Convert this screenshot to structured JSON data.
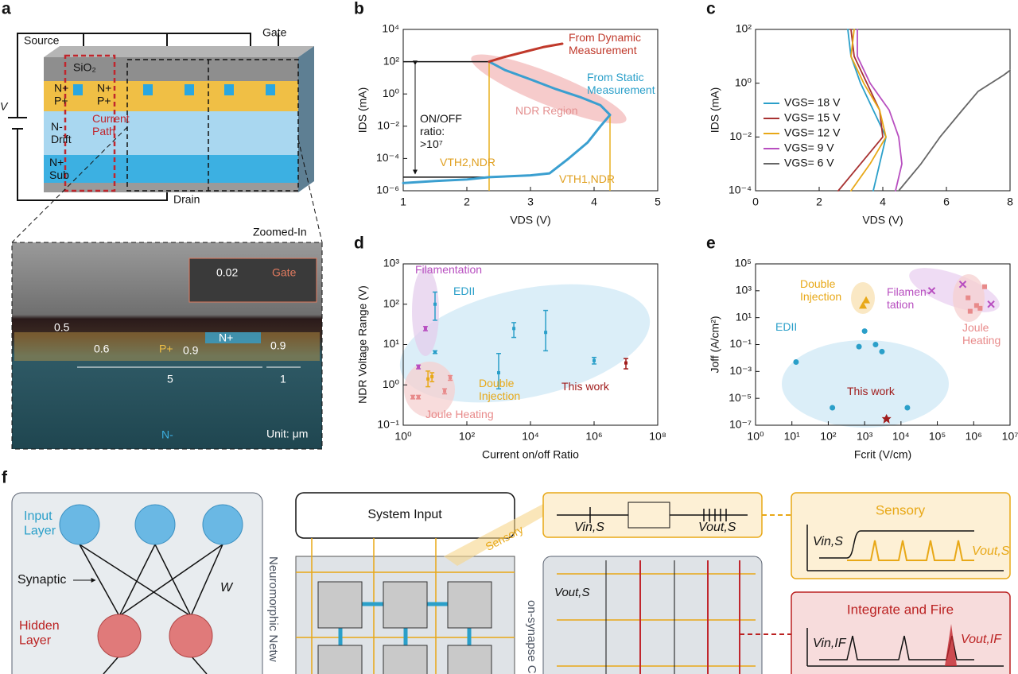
{
  "panel_a": {
    "label": "a",
    "source": "Source",
    "gate": "Gate",
    "sio2": "SiO₂",
    "n_plus_1": "N+",
    "p_plus_1": "P+",
    "n_plus_2": "N+",
    "p_plus_2": "P+",
    "current_path": "Current Path",
    "drift": "N- Drift",
    "sub": "N+ Sub",
    "drain": "Drain",
    "v": "V",
    "zoomed": "Zoomed-In",
    "dim_gate": "0.02",
    "gate2": "Gate",
    "dim_05": "0.5",
    "sem_p": "P+",
    "sem_n": "N+",
    "dim_06": "0.6",
    "dim_09a": "0.9",
    "dim_09b": "0.9",
    "dim_5": "5",
    "dim_1": "1",
    "sem_nminus": "N-",
    "unit": "Unit: μm"
  },
  "chart_data": [
    {
      "type": "line",
      "label": "b",
      "xlabel": "VDS (V)",
      "ylabel": "IDS (mA)",
      "xlim": [
        1,
        5
      ],
      "xticks": [
        1,
        2,
        3,
        4,
        5
      ],
      "ylim": [
        1e-06,
        10000
      ],
      "ylog": true,
      "yticks": [
        {
          "value": 1e-06,
          "label": "10⁻⁶"
        },
        {
          "value": 0.0001,
          "label": "10⁻⁴"
        },
        {
          "value": 0.01,
          "label": "10⁻²"
        },
        {
          "value": 1,
          "label": "10⁰"
        },
        {
          "value": 100,
          "label": "10²"
        },
        {
          "value": 10000,
          "label": "10⁴"
        }
      ],
      "series": [
        {
          "name": "From Static Measurement",
          "color": "#3a9fd0",
          "x": [
            1,
            1.5,
            2,
            2.35,
            3,
            3.3,
            3.6,
            3.9,
            4.1,
            4.25,
            4.1,
            3.8,
            3.4,
            3,
            2.6,
            2.35
          ],
          "values": [
            3e-06,
            4e-06,
            5e-06,
            7e-06,
            9e-06,
            1.2e-05,
            0.0001,
            0.001,
            0.01,
            0.05,
            0.2,
            0.6,
            2,
            8,
            30,
            100
          ]
        },
        {
          "name": "From Dynamic Measurement",
          "color": "#c0392b",
          "x": [
            2.35,
            2.6,
            2.9,
            3.2,
            3.5
          ],
          "values": [
            100,
            200,
            400,
            800,
            1300
          ]
        }
      ],
      "ref_x": [
        2.35,
        4.25
      ],
      "ref_y": [
        100,
        7e-06
      ],
      "annotations": [
        "NDR Region",
        "ON/OFF ratio: >10⁷",
        "VTH2,NDR",
        "VTH1,NDR"
      ]
    },
    {
      "type": "line",
      "label": "c",
      "xlabel": "VDS (V)",
      "ylabel": "IDS (mA)",
      "xlim": [
        0,
        8
      ],
      "xticks": [
        0,
        2,
        4,
        6,
        8
      ],
      "ylim": [
        0.0001,
        100
      ],
      "ylog": true,
      "yticks": [
        {
          "value": 0.0001,
          "label": "10⁻⁴"
        },
        {
          "value": 0.01,
          "label": "10⁻²"
        },
        {
          "value": 1,
          "label": "10⁰"
        },
        {
          "value": 100,
          "label": "10²"
        }
      ],
      "legend": "left",
      "series": [
        {
          "name": "VGS= 18 V",
          "color": "#2a9fc9",
          "x": [
            3.7,
            3.9,
            4.1,
            3.7,
            3.3,
            3.0,
            2.9
          ],
          "values": [
            0.0001,
            0.001,
            0.01,
            0.1,
            1,
            10,
            100
          ]
        },
        {
          "name": "VGS= 15 V",
          "color": "#a83232",
          "x": [
            2.6,
            3.3,
            4.0,
            3.9,
            3.5,
            3.1,
            3.0
          ],
          "values": [
            0.0001,
            0.001,
            0.01,
            0.1,
            1,
            10,
            100
          ]
        },
        {
          "name": "VGS= 12 V",
          "color": "#e8a817",
          "x": [
            3.0,
            3.6,
            4.1,
            3.9,
            3.4,
            3.0,
            3.1
          ],
          "values": [
            0.0001,
            0.001,
            0.01,
            0.1,
            1,
            10,
            100
          ]
        },
        {
          "name": "VGS= 9 V",
          "color": "#b84fc0",
          "x": [
            4.4,
            4.6,
            4.5,
            4.2,
            3.6,
            3.2,
            3.2
          ],
          "values": [
            0.0001,
            0.001,
            0.01,
            0.1,
            1,
            10,
            100
          ]
        },
        {
          "name": "VGS= 6 V",
          "color": "#666666",
          "x": [
            4.5,
            5.2,
            5.8,
            6.5,
            7.0,
            7.8,
            8.0
          ],
          "values": [
            0.0001,
            0.001,
            0.01,
            0.1,
            0.5,
            2,
            3
          ]
        }
      ]
    },
    {
      "type": "errorbar",
      "label": "d",
      "xlabel": "Current on/off Ratio",
      "ylabel": "NDR Voltage Range (V)",
      "xlim": [
        1,
        100000000
      ],
      "xlog": true,
      "xticks": [
        {
          "value": 1,
          "label": "10⁰"
        },
        {
          "value": 100,
          "label": "10²"
        },
        {
          "value": 10000,
          "label": "10⁴"
        },
        {
          "value": 1000000,
          "label": "10⁶"
        },
        {
          "value": 100000000,
          "label": "10⁸"
        }
      ],
      "ylim": [
        0.1,
        1000
      ],
      "ylog": true,
      "yticks": [
        {
          "value": 0.1,
          "label": "10⁻¹"
        },
        {
          "value": 1,
          "label": "10⁰"
        },
        {
          "value": 10,
          "label": "10¹"
        },
        {
          "value": 100,
          "label": "10²"
        },
        {
          "value": 1000,
          "label": "10³"
        }
      ],
      "series": [
        {
          "name": "Filamentation",
          "color": "#b84fc0",
          "x": [
            3,
            5
          ],
          "values": [
            2.8,
            25
          ],
          "low": [
            2.5,
            22
          ],
          "high": [
            3.1,
            28
          ]
        },
        {
          "name": "EDII",
          "color": "#2a9fc9",
          "x": [
            10,
            10,
            1000,
            3000,
            30000,
            1000000
          ],
          "values": [
            100,
            6.5,
            2,
            25,
            20,
            4
          ],
          "low": [
            40,
            6,
            0.8,
            15,
            7,
            3.3
          ],
          "high": [
            200,
            7,
            6,
            35,
            70,
            4.8
          ]
        },
        {
          "name": "Double Injection",
          "color": "#e8a817",
          "x": [
            6,
            8
          ],
          "values": [
            1.4,
            1.6
          ],
          "low": [
            0.9,
            1.2
          ],
          "high": [
            2.2,
            2
          ]
        },
        {
          "name": "Joule Heating",
          "color": "#e88a8a",
          "x": [
            2,
            3,
            20,
            30
          ],
          "values": [
            0.5,
            0.5,
            0.7,
            1.5
          ],
          "low": [
            0.45,
            0.45,
            0.6,
            1.3
          ],
          "high": [
            0.55,
            0.55,
            0.8,
            1.7
          ]
        },
        {
          "name": "This work",
          "color": "#a01c1c",
          "x": [
            10000000
          ],
          "values": [
            3.5
          ],
          "low": [
            2.5
          ],
          "high": [
            4.5
          ]
        }
      ]
    },
    {
      "type": "scatter",
      "label": "e",
      "xlabel": "Fcrit (V/cm)",
      "ylabel": "Joff (A/cm²)",
      "xlim": [
        1,
        10000000
      ],
      "xlog": true,
      "xticks": [
        {
          "value": 1,
          "label": "10⁰"
        },
        {
          "value": 10,
          "label": "10¹"
        },
        {
          "value": 100,
          "label": "10²"
        },
        {
          "value": 1000,
          "label": "10³"
        },
        {
          "value": 10000,
          "label": "10⁴"
        },
        {
          "value": 100000,
          "label": "10⁵"
        },
        {
          "value": 1000000,
          "label": "10⁶"
        },
        {
          "value": 10000000,
          "label": "10⁷"
        }
      ],
      "ylim": [
        1e-07,
        100000
      ],
      "ylog": true,
      "yticks": [
        {
          "value": 1e-07,
          "label": "10⁻⁷"
        },
        {
          "value": 1e-05,
          "label": "10⁻⁵"
        },
        {
          "value": 0.001,
          "label": "10⁻³"
        },
        {
          "value": 0.1,
          "label": "10⁻¹"
        },
        {
          "value": 10,
          "label": "10¹"
        },
        {
          "value": 1000,
          "label": "10³"
        },
        {
          "value": 100000,
          "label": "10⁵"
        }
      ],
      "series": [
        {
          "name": "EDII",
          "color": "#2a9fc9",
          "marker": "circle",
          "x": [
            13,
            130,
            700,
            1000,
            2000,
            3000,
            15000
          ],
          "values": [
            0.005,
            2e-06,
            0.07,
            1,
            0.1,
            0.03,
            2e-06
          ]
        },
        {
          "name": "Double Injection",
          "color": "#e8a817",
          "marker": "triangle",
          "x": [
            900,
            1100
          ],
          "values": [
            80,
            200
          ]
        },
        {
          "name": "Filamen-tation",
          "color": "#b84fc0",
          "marker": "cross",
          "x": [
            70000,
            500000,
            3000000
          ],
          "values": [
            1000,
            3000,
            100
          ]
        },
        {
          "name": "Joule Heating",
          "color": "#e88a8a",
          "marker": "square",
          "x": [
            700000,
            800000,
            1200000,
            1500000,
            2000000
          ],
          "values": [
            300,
            30,
            80,
            50,
            2000
          ]
        },
        {
          "name": "This work",
          "color": "#a01c1c",
          "marker": "star",
          "x": [
            4000
          ],
          "values": [
            3e-07
          ]
        }
      ]
    }
  ],
  "panel_f": {
    "label": "f",
    "input_layer": "Input Layer",
    "synaptic": "Synaptic",
    "w": "W",
    "hidden_layer": "Hidden Layer",
    "system_input": "System Input",
    "network": "Neuromorphic Netw",
    "sensory_tag": "Sensory",
    "vin_s": "Vin,S",
    "vout_s": "Vout,S",
    "sensory": "Sensory",
    "vin_s2": "Vin,S",
    "vout_s2": "Vout,S",
    "core": "on-synapse Core",
    "vout_s3": "Vout,S",
    "integrate": "Integrate and Fire",
    "vin_if": "Vin,IF",
    "vout_if": "Vout,IF"
  }
}
